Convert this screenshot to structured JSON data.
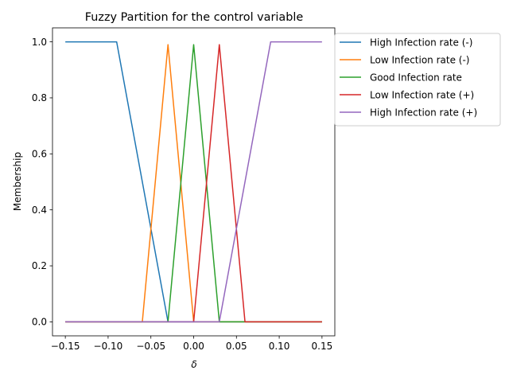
{
  "chart_data": {
    "type": "line",
    "title": "Fuzzy Partition for the control variable",
    "xlabel": "δ",
    "ylabel": "Membership",
    "xlim": [
      -0.165,
      0.165
    ],
    "ylim": [
      -0.05,
      1.05
    ],
    "xticks": [
      -0.15,
      -0.1,
      -0.05,
      0.0,
      0.05,
      0.1,
      0.15
    ],
    "xtick_labels": [
      "−0.15",
      "−0.10",
      "−0.05",
      "0.00",
      "0.05",
      "0.10",
      "0.15"
    ],
    "yticks": [
      0.0,
      0.2,
      0.4,
      0.6,
      0.8,
      1.0
    ],
    "ytick_labels": [
      "0.0",
      "0.2",
      "0.4",
      "0.6",
      "0.8",
      "1.0"
    ],
    "grid": false,
    "legend_position": "outside-top-right",
    "series": [
      {
        "name": "High Infection rate (-)",
        "color": "#1f77b4",
        "points": [
          [
            -0.15,
            1.0
          ],
          [
            -0.09,
            1.0
          ],
          [
            -0.03,
            0.0
          ],
          [
            0.15,
            0.0
          ]
        ]
      },
      {
        "name": "Low Infection rate (-)",
        "color": "#ff7f0e",
        "points": [
          [
            -0.15,
            0.0
          ],
          [
            -0.06,
            0.0
          ],
          [
            -0.03,
            0.99
          ],
          [
            0.0,
            0.0
          ],
          [
            0.15,
            0.0
          ]
        ]
      },
      {
        "name": "Good Infection rate",
        "color": "#2ca02c",
        "points": [
          [
            -0.15,
            0.0
          ],
          [
            -0.03,
            0.0
          ],
          [
            0.0,
            0.99
          ],
          [
            0.03,
            0.0
          ],
          [
            0.15,
            0.0
          ]
        ]
      },
      {
        "name": "Low Infection rate (+)",
        "color": "#d62728",
        "points": [
          [
            -0.15,
            0.0
          ],
          [
            0.0,
            0.0
          ],
          [
            0.03,
            0.99
          ],
          [
            0.06,
            0.0
          ],
          [
            0.15,
            0.0
          ]
        ]
      },
      {
        "name": "High Infection rate (+)",
        "color": "#9467bd",
        "points": [
          [
            -0.15,
            0.0
          ],
          [
            0.03,
            0.0
          ],
          [
            0.09,
            1.0
          ],
          [
            0.15,
            1.0
          ]
        ]
      }
    ]
  }
}
